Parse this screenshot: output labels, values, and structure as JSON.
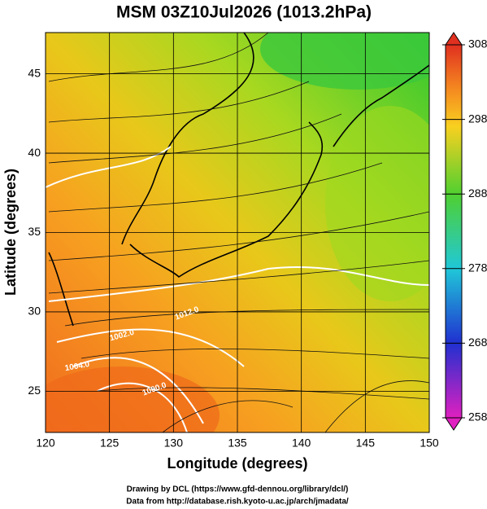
{
  "title": "MSM 03Z10Jul2026 (1013.2hPa)",
  "x_axis": {
    "label": "Longitude (degrees)",
    "lim": [
      120,
      150
    ],
    "ticks": [
      120,
      125,
      130,
      135,
      140,
      145,
      150
    ]
  },
  "y_axis": {
    "label": "Latitude  (degrees)",
    "lim": [
      22.4,
      47.6
    ],
    "ticks": [
      25,
      30,
      35,
      40,
      45
    ]
  },
  "colorbar": {
    "lim": [
      258,
      308
    ],
    "ticks": [
      258,
      268,
      278,
      288,
      298,
      308
    ]
  },
  "contour_labels": [
    "1012.0",
    "1002.0",
    "1004.0",
    "1000.0"
  ],
  "credits": [
    "Drawing by DCL (https://www.gfd-dennou.org/library/dcl/)",
    "Data from http://database.rish.kyoto-u.ac.jp/arch/jmadata/"
  ]
}
